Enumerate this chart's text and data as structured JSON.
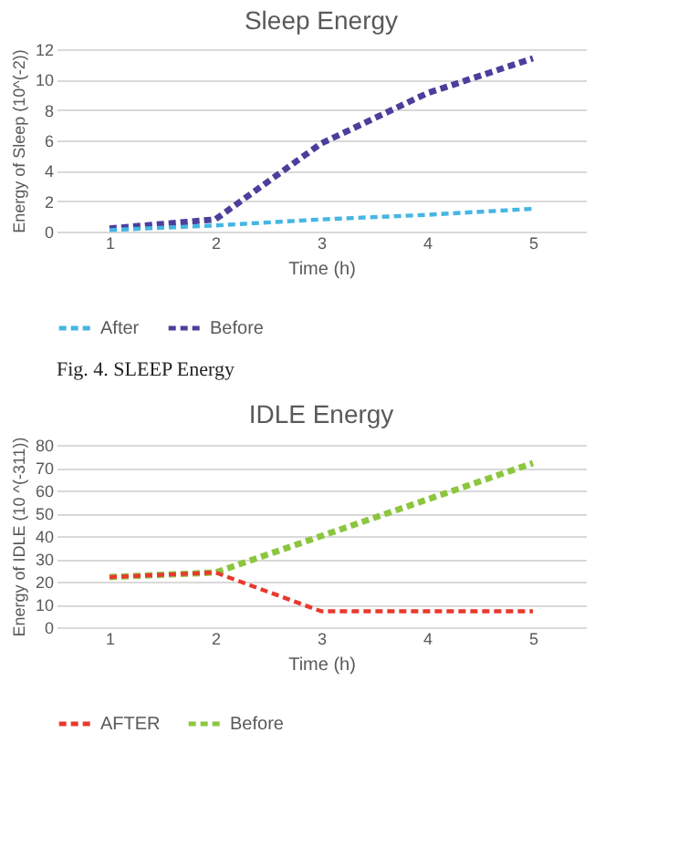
{
  "chart_data": [
    {
      "type": "line",
      "title": "Sleep Energy",
      "xlabel": "Time (h)",
      "ylabel": "Energy of Sleep (10^(-2))",
      "categories": [
        "1",
        "2",
        "3",
        "4",
        "5"
      ],
      "series": [
        {
          "name": "After",
          "color": "#45b6e3",
          "line_style": "dashed",
          "values": [
            0.1,
            0.4,
            0.8,
            1.1,
            1.5
          ]
        },
        {
          "name": "Before",
          "color": "#4b3f9c",
          "line_style": "dashed",
          "values": [
            0.2,
            0.8,
            5.8,
            9.1,
            11.4
          ]
        }
      ],
      "ylim": [
        0,
        12
      ],
      "yticks": [
        0,
        2,
        4,
        6,
        8,
        10,
        12
      ],
      "grid": "y",
      "legend": "bottom",
      "marker": "none",
      "annotations": [
        "Fig. 4.    SLEEP Energy"
      ]
    },
    {
      "type": "line",
      "title": "IDLE Energy",
      "xlabel": "Time (h)",
      "ylabel": "Energy of IDLE (10 ^(-311))",
      "categories": [
        "1",
        "2",
        "3",
        "4",
        "5"
      ],
      "series": [
        {
          "name": "AFTER",
          "color": "#e8392c",
          "line_style": "dashed",
          "values": [
            22,
            24,
            7,
            7,
            7
          ]
        },
        {
          "name": "Before",
          "color": "#8cc63f",
          "line_style": "dashed",
          "values": [
            22,
            24,
            40,
            56,
            72
          ]
        }
      ],
      "ylim": [
        0,
        80
      ],
      "yticks": [
        0,
        10,
        20,
        30,
        40,
        50,
        60,
        70,
        80
      ],
      "grid": "y",
      "legend": "bottom",
      "marker": "none"
    }
  ]
}
